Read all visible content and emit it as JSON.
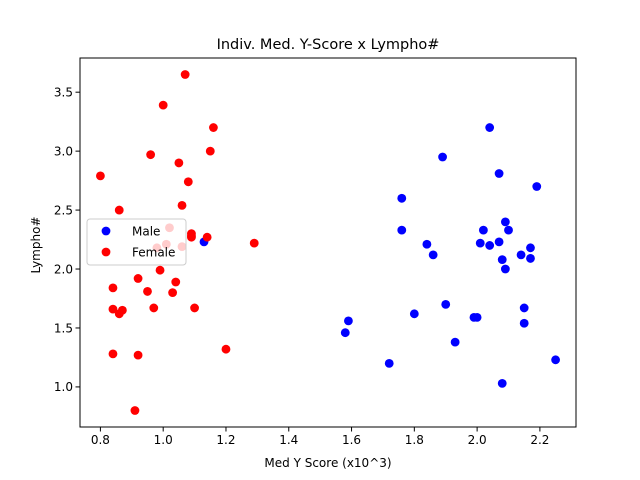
{
  "chart_data": {
    "type": "scatter",
    "title": "Indiv. Med. Y-Score x Lympho#",
    "xlabel": "Med Y Score (x10^3)",
    "ylabel": "Lympho#",
    "xlim": [
      0.735,
      2.315
    ],
    "ylim": [
      0.66,
      3.79
    ],
    "x_ticks": [
      0.8,
      1.0,
      1.2,
      1.4,
      1.6,
      1.8,
      2.0,
      2.2
    ],
    "x_tick_labels": [
      "0.8",
      "1.0",
      "1.2",
      "1.4",
      "1.6",
      "1.8",
      "2.0",
      "2.2"
    ],
    "y_ticks": [
      1.0,
      1.5,
      2.0,
      2.5,
      3.0,
      3.5
    ],
    "y_tick_labels": [
      "1.0",
      "1.5",
      "2.0",
      "2.5",
      "3.0",
      "3.5"
    ],
    "grid": false,
    "legend_position": "center-left",
    "series": [
      {
        "name": "Male",
        "color": "#0000ff",
        "points": [
          [
            1.13,
            2.23
          ],
          [
            1.58,
            1.46
          ],
          [
            1.59,
            1.56
          ],
          [
            1.72,
            1.2
          ],
          [
            1.76,
            2.33
          ],
          [
            1.76,
            2.6
          ],
          [
            1.8,
            1.62
          ],
          [
            1.84,
            2.21
          ],
          [
            1.86,
            2.12
          ],
          [
            1.89,
            2.95
          ],
          [
            1.9,
            1.7
          ],
          [
            1.93,
            1.38
          ],
          [
            1.99,
            1.59
          ],
          [
            2.0,
            1.59
          ],
          [
            2.01,
            2.22
          ],
          [
            2.02,
            2.33
          ],
          [
            2.04,
            3.2
          ],
          [
            2.04,
            2.2
          ],
          [
            2.07,
            2.81
          ],
          [
            2.07,
            2.23
          ],
          [
            2.08,
            2.08
          ],
          [
            2.08,
            1.03
          ],
          [
            2.09,
            2.4
          ],
          [
            2.09,
            2.0
          ],
          [
            2.1,
            2.33
          ],
          [
            2.14,
            2.12
          ],
          [
            2.15,
            1.67
          ],
          [
            2.15,
            1.54
          ],
          [
            2.17,
            2.18
          ],
          [
            2.17,
            2.09
          ],
          [
            2.19,
            2.7
          ],
          [
            2.25,
            1.23
          ]
        ]
      },
      {
        "name": "Female",
        "color": "#ff0000",
        "points": [
          [
            0.8,
            2.79
          ],
          [
            0.84,
            1.84
          ],
          [
            0.84,
            1.66
          ],
          [
            0.84,
            1.28
          ],
          [
            0.86,
            1.62
          ],
          [
            0.86,
            2.5
          ],
          [
            0.87,
            1.65
          ],
          [
            0.91,
            0.8
          ],
          [
            0.92,
            1.27
          ],
          [
            0.92,
            1.92
          ],
          [
            0.95,
            1.81
          ],
          [
            0.96,
            2.97
          ],
          [
            0.97,
            1.67
          ],
          [
            0.98,
            2.18
          ],
          [
            0.99,
            1.99
          ],
          [
            1.0,
            3.39
          ],
          [
            1.01,
            2.21
          ],
          [
            1.02,
            2.35
          ],
          [
            1.03,
            1.8
          ],
          [
            1.04,
            1.89
          ],
          [
            1.05,
            2.9
          ],
          [
            1.06,
            2.19
          ],
          [
            1.06,
            2.54
          ],
          [
            1.07,
            3.65
          ],
          [
            1.08,
            2.74
          ],
          [
            1.09,
            2.3
          ],
          [
            1.09,
            2.27
          ],
          [
            1.09,
            2.28
          ],
          [
            1.1,
            1.67
          ],
          [
            1.14,
            2.27
          ],
          [
            1.15,
            3.0
          ],
          [
            1.16,
            3.2
          ],
          [
            1.2,
            1.32
          ],
          [
            1.29,
            2.22
          ]
        ]
      }
    ]
  }
}
